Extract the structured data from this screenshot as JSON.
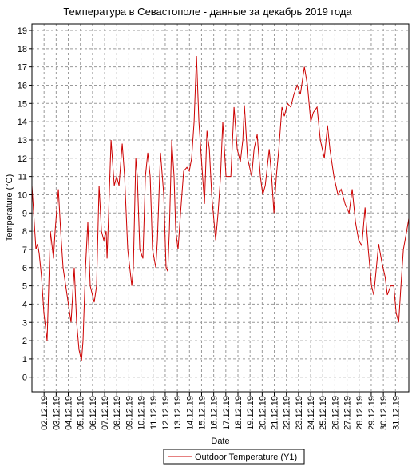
{
  "chart_data": {
    "type": "line",
    "title": "Температура в Севастополе - данные за декабрь 2019 года",
    "x_label": "Date",
    "y_label": "Temperature (°C)",
    "series": [
      {
        "name": "Outdoor Temperature (Y1)",
        "color": "#cc0000",
        "x": [
          1.0,
          1.33,
          1.46,
          1.59,
          1.79,
          1.99,
          2.25,
          2.52,
          2.78,
          2.91,
          3.18,
          3.37,
          3.57,
          3.9,
          4.23,
          4.49,
          4.69,
          4.89,
          5.09,
          5.22,
          5.42,
          5.61,
          5.81,
          6.14,
          6.34,
          6.54,
          6.74,
          6.93,
          7.13,
          7.2,
          7.33,
          7.53,
          7.79,
          7.99,
          8.19,
          8.45,
          8.65,
          8.91,
          9.24,
          9.37,
          9.57,
          9.7,
          9.9,
          10.16,
          10.36,
          10.56,
          10.76,
          10.95,
          11.22,
          11.35,
          11.61,
          11.88,
          12.07,
          12.21,
          12.34,
          12.54,
          12.73,
          12.87,
          13.06,
          13.26,
          13.52,
          13.79,
          13.99,
          14.18,
          14.38,
          14.58,
          14.78,
          14.98,
          15.24,
          15.44,
          15.64,
          15.83,
          16.16,
          16.36,
          16.56,
          16.75,
          17.02,
          17.28,
          17.41,
          17.68,
          17.94,
          18.2,
          18.4,
          18.53,
          18.8,
          19.13,
          19.33,
          19.59,
          19.85,
          20.05,
          20.25,
          20.58,
          20.78,
          20.97,
          21.17,
          21.37,
          21.63,
          21.83,
          22.09,
          22.36,
          22.62,
          22.89,
          23.15,
          23.48,
          23.74,
          24.01,
          24.22,
          24.53,
          24.8,
          25.13,
          25.39,
          25.59,
          25.92,
          26.25,
          26.51,
          26.84,
          27.17,
          27.43,
          27.7,
          27.96,
          28.22,
          28.49,
          28.75,
          29.02,
          29.21,
          29.61,
          29.87,
          30.14,
          30.33,
          30.6,
          30.86,
          31.06,
          31.26,
          31.45,
          31.65,
          31.92,
          32.1
        ],
        "values": [
          10.5,
          7,
          7.3,
          6.8,
          5.5,
          3.5,
          2,
          8,
          6.5,
          8,
          10.3,
          8,
          6,
          4.5,
          3,
          6,
          3,
          1.5,
          0.9,
          2,
          6,
          8.5,
          5,
          4.1,
          5,
          10.5,
          8,
          7.5,
          8,
          6.5,
          9,
          13,
          10.5,
          11,
          10.5,
          12.8,
          11,
          7,
          5,
          6,
          12,
          11,
          7,
          6.5,
          11,
          12.3,
          11,
          7,
          6,
          7.5,
          12.3,
          10,
          6,
          5.8,
          8,
          13,
          11,
          8,
          7,
          9,
          11.3,
          11.5,
          11.3,
          12,
          14,
          17.6,
          14,
          12,
          9.5,
          13.5,
          12.5,
          10,
          7.5,
          9,
          11,
          14,
          11,
          11,
          11,
          14.8,
          12.5,
          11.8,
          13,
          14.9,
          12,
          11,
          12.5,
          13.3,
          11,
          10,
          10.5,
          12.5,
          11,
          9,
          11,
          12.5,
          14.8,
          14.3,
          15,
          14.8,
          15.5,
          16,
          15.5,
          17,
          16,
          14,
          14.5,
          14.8,
          13,
          12,
          13.8,
          12.5,
          11,
          10,
          10.3,
          9.5,
          9,
          10.3,
          8.5,
          7.5,
          7.2,
          9.3,
          7,
          5,
          4.5,
          7.3,
          6.3,
          5.5,
          4.5,
          5,
          5,
          3.5,
          3,
          5,
          7,
          8,
          8.7
        ]
      }
    ],
    "xlim": [
      1,
      32.1
    ],
    "xticks": [
      {
        "value": 2,
        "label": "02.12.19"
      },
      {
        "value": 3,
        "label": "03.12.19"
      },
      {
        "value": 4,
        "label": "04.12.19"
      },
      {
        "value": 5,
        "label": "05.12.19"
      },
      {
        "value": 6,
        "label": "06.12.19"
      },
      {
        "value": 7,
        "label": "07.12.19"
      },
      {
        "value": 8,
        "label": "08.12.19"
      },
      {
        "value": 9,
        "label": "09.12.19"
      },
      {
        "value": 10,
        "label": "10.12.19"
      },
      {
        "value": 11,
        "label": "11.12.19"
      },
      {
        "value": 12,
        "label": "12.12.19"
      },
      {
        "value": 13,
        "label": "13.12.19"
      },
      {
        "value": 14,
        "label": "14.12.19"
      },
      {
        "value": 15,
        "label": "15.12.19"
      },
      {
        "value": 16,
        "label": "16.12.19"
      },
      {
        "value": 17,
        "label": "17.12.19"
      },
      {
        "value": 18,
        "label": "18.12.19"
      },
      {
        "value": 19,
        "label": "19.12.19"
      },
      {
        "value": 20,
        "label": "20.12.19"
      },
      {
        "value": 21,
        "label": "21.12.19"
      },
      {
        "value": 22,
        "label": "22.12.19"
      },
      {
        "value": 23,
        "label": "23.12.19"
      },
      {
        "value": 24,
        "label": "24.12.19"
      },
      {
        "value": 25,
        "label": "25.12.19"
      },
      {
        "value": 26,
        "label": "26.12.19"
      },
      {
        "value": 27,
        "label": "27.12.19"
      },
      {
        "value": 28,
        "label": "28.12.19"
      },
      {
        "value": 29,
        "label": "29.12.19"
      },
      {
        "value": 30,
        "label": "30.12.19"
      },
      {
        "value": 31,
        "label": "31.12.19"
      }
    ],
    "ylim": [
      -0.8,
      19.35
    ],
    "yticks": [
      0,
      1,
      2,
      3,
      4,
      5,
      6,
      7,
      8,
      9,
      10,
      11,
      12,
      13,
      14,
      15,
      16,
      17,
      18,
      19
    ],
    "grid": true,
    "legend": "bottom"
  }
}
